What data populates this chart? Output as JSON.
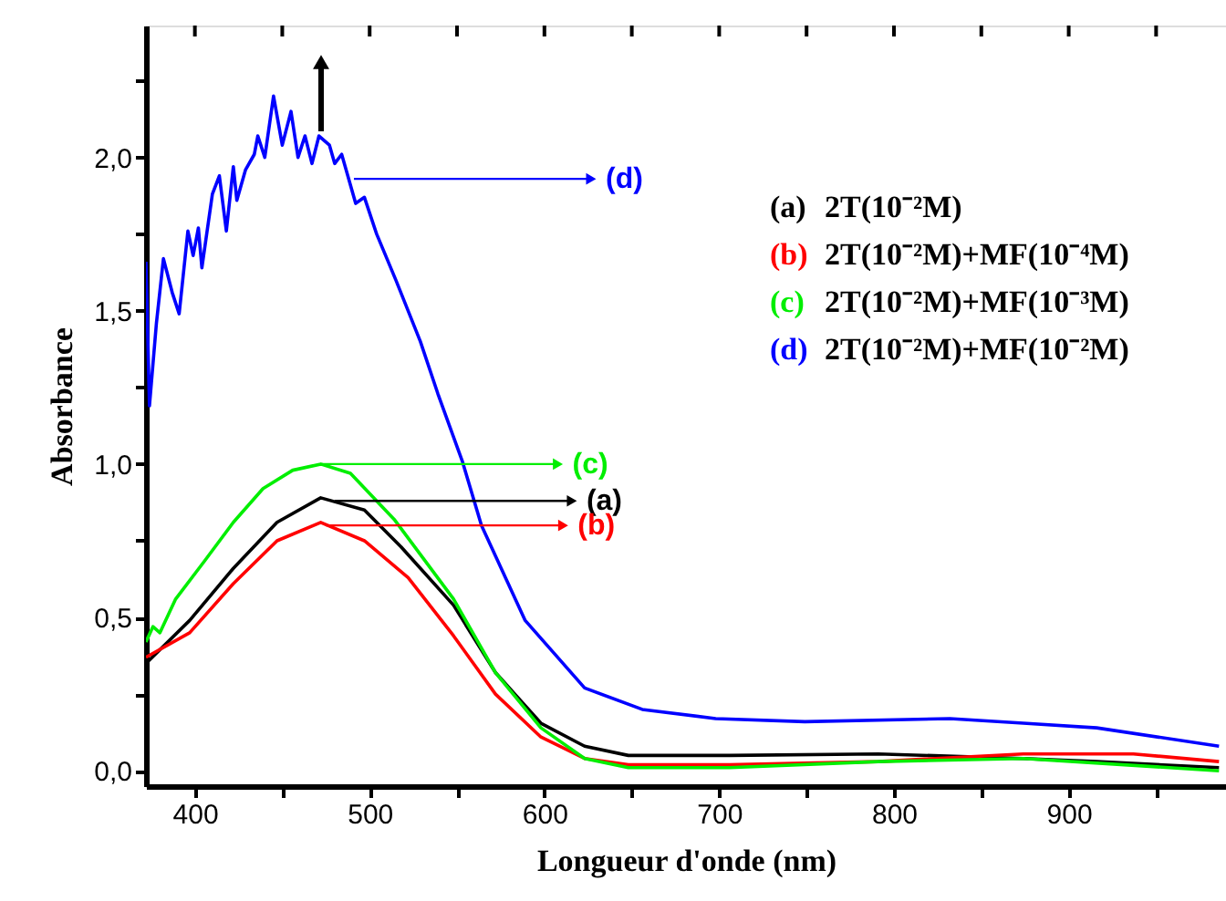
{
  "chart_data": {
    "type": "line",
    "xlabel": "Longueur d'onde (nm)",
    "ylabel": "Absorbance",
    "xlim": [
      372,
      990
    ],
    "ylim": [
      -0.05,
      2.43
    ],
    "xticks": [
      400,
      {
        "value": 450,
        "label": null
      },
      500,
      {
        "value": 550,
        "label": null
      },
      600,
      {
        "value": 650,
        "label": null
      },
      700,
      {
        "value": 750,
        "label": null
      },
      800,
      {
        "value": 850,
        "label": null
      },
      900,
      {
        "value": 950,
        "label": null
      }
    ],
    "yticks": [
      {
        "value": 0,
        "label": "0,0"
      },
      {
        "value": 0.25,
        "label": null
      },
      {
        "value": 0.5,
        "label": "0,5"
      },
      {
        "value": 0.75,
        "label": null
      },
      {
        "value": 1,
        "label": "1,0"
      },
      {
        "value": 1.25,
        "label": null
      },
      {
        "value": 1.5,
        "label": "1,5"
      },
      {
        "value": 1.75,
        "label": null
      },
      {
        "value": 2,
        "label": "2,0"
      },
      {
        "value": 2.25,
        "label": null
      }
    ],
    "grid": false,
    "marker": "none",
    "line_style": "solid",
    "series": [
      {
        "name": "(a) 2T(10⁻²M)",
        "color": "#000000",
        "x": [
          372,
          397,
          422,
          447,
          472,
          497,
          518,
          548,
          572,
          598,
          623,
          648,
          706,
          791,
          874,
          916,
          986
        ],
        "values": [
          0.35,
          0.49,
          0.66,
          0.81,
          0.89,
          0.85,
          0.73,
          0.54,
          0.32,
          0.155,
          0.08,
          0.05,
          0.05,
          0.055,
          0.04,
          0.03,
          0.01
        ]
      },
      {
        "name": "(b) 2T(10⁻²M)+MF(10⁻⁴M)",
        "color": "#ff0000",
        "x": [
          372,
          397,
          422,
          447,
          472,
          497,
          522,
          548,
          572,
          598,
          623,
          648,
          706,
          791,
          874,
          937,
          986
        ],
        "values": [
          0.37,
          0.45,
          0.61,
          0.75,
          0.81,
          0.75,
          0.63,
          0.44,
          0.25,
          0.11,
          0.04,
          0.02,
          0.02,
          0.03,
          0.055,
          0.055,
          0.03
        ]
      },
      {
        "name": "(c) 2T(10⁻²M)+MF(10⁻³M)",
        "color": "#00ee00",
        "x": [
          372,
          376,
          380,
          389,
          405,
          422,
          439,
          456,
          472,
          489,
          514,
          548,
          572,
          598,
          623,
          648,
          706,
          791,
          874,
          986
        ],
        "values": [
          0.42,
          0.47,
          0.45,
          0.56,
          0.68,
          0.81,
          0.92,
          0.98,
          1.0,
          0.97,
          0.82,
          0.56,
          0.32,
          0.14,
          0.04,
          0.01,
          0.01,
          0.03,
          0.04,
          0.0
        ]
      },
      {
        "name": "(d) 2T(10⁻²M)+MF(10⁻²M)",
        "color": "#0000ff",
        "x": [
          372,
          374,
          378,
          382,
          387,
          391,
          396,
          399,
          402,
          404,
          410,
          414,
          418,
          422,
          424,
          429,
          434,
          436,
          440,
          445,
          450,
          455,
          459,
          463,
          467,
          471,
          477,
          480,
          484,
          492,
          497,
          504,
          515,
          529,
          539,
          553,
          564,
          589,
          623,
          656,
          698,
          749,
          832,
          874,
          916,
          986
        ],
        "values": [
          1.66,
          1.19,
          1.46,
          1.67,
          1.56,
          1.49,
          1.76,
          1.68,
          1.77,
          1.64,
          1.88,
          1.94,
          1.76,
          1.97,
          1.86,
          1.96,
          2.01,
          2.07,
          2.0,
          2.2,
          2.04,
          2.15,
          2.0,
          2.07,
          1.98,
          2.07,
          2.04,
          1.98,
          2.01,
          1.85,
          1.87,
          1.75,
          1.6,
          1.4,
          1.23,
          1.01,
          0.8,
          0.49,
          0.27,
          0.2,
          0.17,
          0.16,
          0.17,
          0.155,
          0.14,
          0.08
        ]
      }
    ],
    "annotations": [
      {
        "text": "(d)",
        "x": 491,
        "y": 1.93
      },
      {
        "text": "(c)",
        "x": 472,
        "y": 1.0
      },
      {
        "text": "(a)",
        "x": 480,
        "y": 0.88
      },
      {
        "text": "(b)",
        "x": 475,
        "y": 0.8
      }
    ]
  }
}
